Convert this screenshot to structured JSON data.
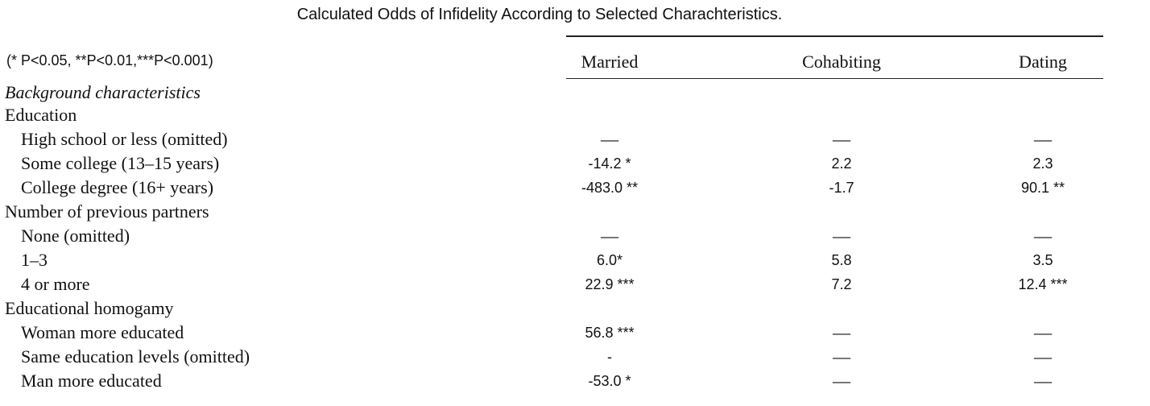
{
  "title": "Calculated Odds of Infidelity According to Selected Charachteristics.",
  "note": "(* P<0.05, **P<0.01,***P<0.001)",
  "table": {
    "columns": [
      "Married",
      "Cohabiting",
      "Dating"
    ],
    "section": "Background characteristics",
    "groups": [
      {
        "heading": "Education",
        "rows": [
          {
            "label": "High school or less (omitted)",
            "cells": [
              "—",
              "—",
              "—"
            ]
          },
          {
            "label": "Some college (13–15 years)",
            "cells": [
              "-14.2 *",
              "2.2",
              "2.3"
            ]
          },
          {
            "label": "College degree (16+ years)",
            "cells": [
              "-483.0 **",
              "-1.7",
              "90.1 **"
            ]
          }
        ]
      },
      {
        "heading": "Number of previous partners",
        "rows": [
          {
            "label": "None (omitted)",
            "cells": [
              "—",
              "—",
              "—"
            ]
          },
          {
            "label": "1–3",
            "cells": [
              "6.0*",
              "5.8",
              "3.5"
            ]
          },
          {
            "label": "4 or more",
            "cells": [
              "22.9 ***",
              "7.2",
              "12.4 ***"
            ]
          }
        ]
      },
      {
        "heading": "Educational homogamy",
        "rows": [
          {
            "label": "Woman more educated",
            "cells": [
              "56.8 ***",
              "—",
              "—"
            ]
          },
          {
            "label": "Same education levels (omitted)",
            "cells": [
              "-",
              "—",
              "—"
            ]
          },
          {
            "label": "Man more educated",
            "cells": [
              "-53.0 *",
              "—",
              "—"
            ]
          }
        ]
      }
    ]
  }
}
